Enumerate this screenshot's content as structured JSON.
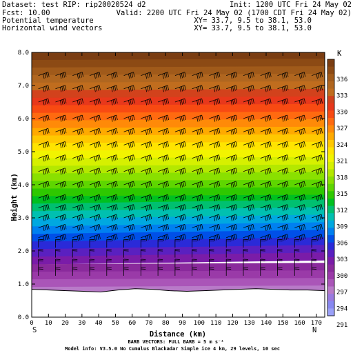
{
  "header": {
    "dataset": "Dataset: test   RIP: rip20020524 d2",
    "init": "Init: 1200 UTC Fri 24 May 02",
    "fcst": "Fcst:    10.00",
    "valid": "Valid: 2200 UTC Fri 24 May 02 (1700 CDT Fri 24 May 02)",
    "field1_name": "Potential temperature",
    "field1_xy": "XY=  33.7,  9.5 to  38.1, 53.0",
    "field2_name": "Horizontal wind vectors",
    "field2_xy": "XY=  33.7,  9.5 to  38.1, 53.0"
  },
  "footer": {
    "left_end": "S",
    "right_end": "N",
    "barb_note": "BARB VECTORS:  FULL BARB = 5 m s⁻¹",
    "model_info": "Model info: V3.5.0 No Cumulus Blackadar  Simple ice    4 km,  29 levels,   10 sec"
  },
  "chart_data": {
    "type": "heatmap",
    "title": "Potential temperature",
    "xlabel": "Distance (km)",
    "ylabel": "Height (km)",
    "xlim": [
      0,
      175
    ],
    "ylim": [
      0,
      8
    ],
    "x_ticks": [
      0,
      10,
      20,
      30,
      40,
      50,
      60,
      70,
      80,
      90,
      100,
      110,
      120,
      130,
      140,
      150,
      160,
      170
    ],
    "y_ticks": [
      0.0,
      1.0,
      2.0,
      3.0,
      4.0,
      5.0,
      6.0,
      7.0,
      8.0
    ],
    "colorbar": {
      "unit": "K",
      "labels": [
        336,
        333,
        330,
        327,
        324,
        321,
        318,
        315,
        312,
        309,
        306,
        303,
        300,
        297,
        294,
        291
      ],
      "colors": [
        "#7a3d12",
        "#8c4a14",
        "#a05a1a",
        "#b0661f",
        "#c06d1e",
        "#d2421c",
        "#e8381b",
        "#f84a12",
        "#ff6a10",
        "#ff8a08",
        "#ffaa00",
        "#ffc800",
        "#ffe400",
        "#f2f400",
        "#d6f000",
        "#b4e800",
        "#8ae000",
        "#5ed600",
        "#2ec800",
        "#00c020",
        "#00c070",
        "#00c0b0",
        "#00a8e0",
        "#0080f0",
        "#0050e8",
        "#2a2ad8",
        "#5a20c0",
        "#7a1ca8",
        "#8a2a9c",
        "#9a3aa8",
        "#aa55b8",
        "#b87ac8",
        "#9a7ae0",
        "#8888f0",
        "#9aa0f8"
      ]
    },
    "terrain_height_km": [
      0.84,
      0.82,
      0.8,
      0.78,
      0.76,
      0.82,
      0.86,
      0.84,
      0.8,
      0.78,
      0.8,
      0.82,
      0.84,
      0.86,
      0.84,
      0.82,
      0.82,
      0.8
    ]
  }
}
